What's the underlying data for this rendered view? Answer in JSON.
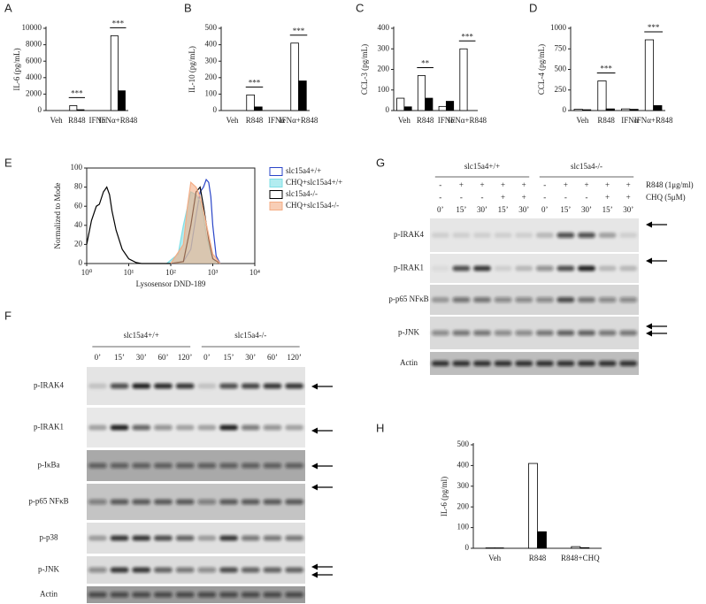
{
  "chart_data": [
    {
      "label": "A",
      "type": "bar",
      "ylabel": "IL-6 (pg/mL)",
      "categories": [
        "Veh",
        "R848",
        "IFNα",
        "IFNα+R848"
      ],
      "series": [
        {
          "color": "#ffffff",
          "values": [
            0,
            600,
            0,
            9100
          ]
        },
        {
          "color": "#000000",
          "values": [
            0,
            100,
            0,
            2400
          ]
        }
      ],
      "significance": [
        null,
        "***",
        null,
        "***"
      ],
      "ylim": [
        0,
        10000
      ],
      "yticks": [
        0,
        2000,
        4000,
        6000,
        8000,
        10000
      ]
    },
    {
      "label": "B",
      "type": "bar",
      "ylabel": "IL-10 (pg/mL)",
      "categories": [
        "Veh",
        "R848",
        "IFNα",
        "IFNα+R848"
      ],
      "series": [
        {
          "color": "#ffffff",
          "values": [
            0,
            95,
            0,
            410
          ]
        },
        {
          "color": "#000000",
          "values": [
            0,
            22,
            0,
            180
          ]
        }
      ],
      "significance": [
        null,
        "***",
        null,
        "***"
      ],
      "ylim": [
        0,
        500
      ],
      "yticks": [
        0,
        100,
        200,
        300,
        400,
        500
      ]
    },
    {
      "label": "C",
      "type": "bar",
      "ylabel": "CCL-3 (pg/mL)",
      "categories": [
        "Veh",
        "R848",
        "IFNα",
        "IFNα+R848"
      ],
      "series": [
        {
          "color": "#ffffff",
          "values": [
            60,
            170,
            20,
            300
          ]
        },
        {
          "color": "#000000",
          "values": [
            18,
            60,
            45,
            0
          ]
        }
      ],
      "significance": [
        null,
        "**",
        null,
        "***"
      ],
      "ylim": [
        0,
        400
      ],
      "yticks": [
        0,
        100,
        200,
        300,
        400
      ]
    },
    {
      "label": "D",
      "type": "bar",
      "ylabel": "CCL-4 (pg/mL)",
      "categories": [
        "Veh",
        "R848",
        "IFNα",
        "IFNα+R848"
      ],
      "series": [
        {
          "color": "#ffffff",
          "values": [
            15,
            360,
            20,
            860
          ]
        },
        {
          "color": "#000000",
          "values": [
            10,
            20,
            15,
            60
          ]
        }
      ],
      "significance": [
        null,
        "***",
        null,
        "***"
      ],
      "ylim": [
        0,
        1000
      ],
      "yticks": [
        0,
        250,
        500,
        750,
        1000
      ]
    },
    {
      "label": "E",
      "type": "line",
      "xlabel": "Lysosensor DND-189",
      "ylabel": "Normalized to Mode",
      "log_x": true,
      "xlim": [
        1,
        10000
      ],
      "xticks": [
        {
          "value": 1,
          "label": "10⁰"
        },
        {
          "value": 10,
          "label": "10¹"
        },
        {
          "value": 100,
          "label": "10²"
        },
        {
          "value": 1000,
          "label": "10³"
        },
        {
          "value": 10000,
          "label": "10⁴"
        }
      ],
      "ylim": [
        0,
        100
      ],
      "yticks": [
        0,
        20,
        40,
        60,
        80,
        100
      ],
      "legend": "outside-right",
      "series": [
        {
          "name": "slc15a4+/+",
          "color": "#2a45c8",
          "filled": false,
          "x": [
            100,
            200,
            300,
            400,
            500,
            600,
            700,
            800,
            900,
            1000,
            1200,
            1500
          ],
          "values": [
            0,
            2,
            15,
            50,
            75,
            80,
            88,
            85,
            70,
            40,
            8,
            0
          ]
        },
        {
          "name": "CHQ+slc15a4+/+",
          "color": "#7fdfe6",
          "filled": true,
          "x": [
            80,
            150,
            200,
            300,
            400,
            500,
            600,
            700,
            900,
            1200
          ],
          "values": [
            0,
            10,
            40,
            75,
            72,
            65,
            50,
            30,
            10,
            0
          ]
        },
        {
          "name": "slc15a4-/-",
          "color": "#000000",
          "filled": false,
          "x": [
            1,
            1.3,
            1.7,
            2,
            2.5,
            3,
            3.5,
            4,
            5,
            7,
            10,
            15,
            20,
            100,
            200,
            300,
            400,
            500,
            600,
            800,
            1000,
            1500
          ],
          "values": [
            20,
            45,
            60,
            62,
            75,
            80,
            72,
            55,
            35,
            15,
            5,
            1,
            0,
            0,
            2,
            40,
            75,
            80,
            60,
            25,
            5,
            0
          ]
        },
        {
          "name": "CHQ+slc15a4-/-",
          "color": "#f4ad86",
          "filled": true,
          "x": [
            100,
            200,
            250,
            300,
            400,
            500,
            600,
            800,
            1000,
            1500
          ],
          "values": [
            0,
            20,
            60,
            85,
            80,
            70,
            55,
            30,
            10,
            0
          ]
        }
      ]
    },
    {
      "label": "H",
      "type": "bar",
      "ylabel": "IL-6 (pg/ml)",
      "categories": [
        "Veh",
        "R848",
        "R848+CHQ"
      ],
      "series": [
        {
          "color": "#ffffff",
          "values": [
            2,
            410,
            8
          ]
        },
        {
          "color": "#000000",
          "values": [
            2,
            80,
            3
          ]
        }
      ],
      "ylim": [
        0,
        500
      ],
      "yticks": [
        0,
        100,
        200,
        300,
        400,
        500
      ]
    }
  ],
  "blots": [
    {
      "label": "F",
      "groups": [
        "slc15a4+/+",
        "slc15a4-/-"
      ],
      "lanes": [
        "0’",
        "15’",
        "30’",
        "60’",
        "120’",
        "0’",
        "15’",
        "30’",
        "60’",
        "120’"
      ],
      "rows": [
        "p-IRAK4",
        "p-IRAK1",
        "p-IκBa",
        "p-p65 NFκB",
        "p-p38",
        "p-JNK",
        "Actin"
      ]
    },
    {
      "label": "G",
      "groups": [
        "slc15a4+/+",
        "slc15a4-/-"
      ],
      "treatments": [
        {
          "label": "R848 (1μg/ml)",
          "signs": [
            "-",
            "+",
            "+",
            "+",
            "+",
            "-",
            "+",
            "+",
            "+",
            "+"
          ]
        },
        {
          "label": "CHQ (5μM)",
          "signs": [
            "-",
            "-",
            "-",
            "+",
            "+",
            "-",
            "-",
            "-",
            "+",
            "+"
          ]
        }
      ],
      "lanes": [
        "0’",
        "15’",
        "30’",
        "15’",
        "30’",
        "0’",
        "15’",
        "30’",
        "15’",
        "30’"
      ],
      "rows": [
        "p-IRAK4",
        "p-IRAK1",
        "p-p65 NFκB",
        "p-JNK",
        "Actin"
      ]
    }
  ]
}
